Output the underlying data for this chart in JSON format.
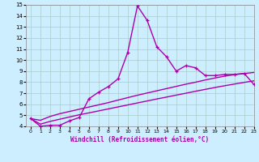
{
  "xlabel": "Windchill (Refroidissement éolien,°C)",
  "x": [
    0,
    1,
    2,
    3,
    4,
    5,
    6,
    7,
    8,
    9,
    10,
    11,
    12,
    13,
    14,
    15,
    16,
    17,
    18,
    19,
    20,
    21,
    22,
    23
  ],
  "y_main": [
    4.7,
    4.0,
    4.1,
    4.1,
    4.5,
    4.8,
    6.5,
    7.1,
    7.6,
    8.3,
    10.7,
    14.9,
    13.6,
    11.2,
    10.3,
    9.0,
    9.5,
    9.3,
    8.6,
    8.6,
    8.7,
    8.7,
    8.8,
    7.8
  ],
  "y_line1": [
    4.7,
    4.55,
    4.9,
    5.15,
    5.35,
    5.55,
    5.75,
    5.95,
    6.15,
    6.38,
    6.6,
    6.82,
    7.02,
    7.22,
    7.42,
    7.62,
    7.82,
    8.0,
    8.2,
    8.38,
    8.55,
    8.68,
    8.78,
    8.88
  ],
  "y_line2": [
    4.7,
    4.2,
    4.45,
    4.65,
    4.85,
    5.05,
    5.22,
    5.4,
    5.58,
    5.76,
    5.94,
    6.12,
    6.3,
    6.48,
    6.65,
    6.83,
    7.0,
    7.18,
    7.35,
    7.52,
    7.68,
    7.83,
    7.98,
    8.12
  ],
  "line_color": "#aa00aa",
  "bg_color": "#cceeff",
  "grid_color": "#aacccc",
  "xlim": [
    -0.5,
    23
  ],
  "ylim": [
    4,
    15
  ],
  "yticks": [
    4,
    5,
    6,
    7,
    8,
    9,
    10,
    11,
    12,
    13,
    14,
    15
  ],
  "xticks": [
    0,
    1,
    2,
    3,
    4,
    5,
    6,
    7,
    8,
    9,
    10,
    11,
    12,
    13,
    14,
    15,
    16,
    17,
    18,
    19,
    20,
    21,
    22,
    23
  ]
}
